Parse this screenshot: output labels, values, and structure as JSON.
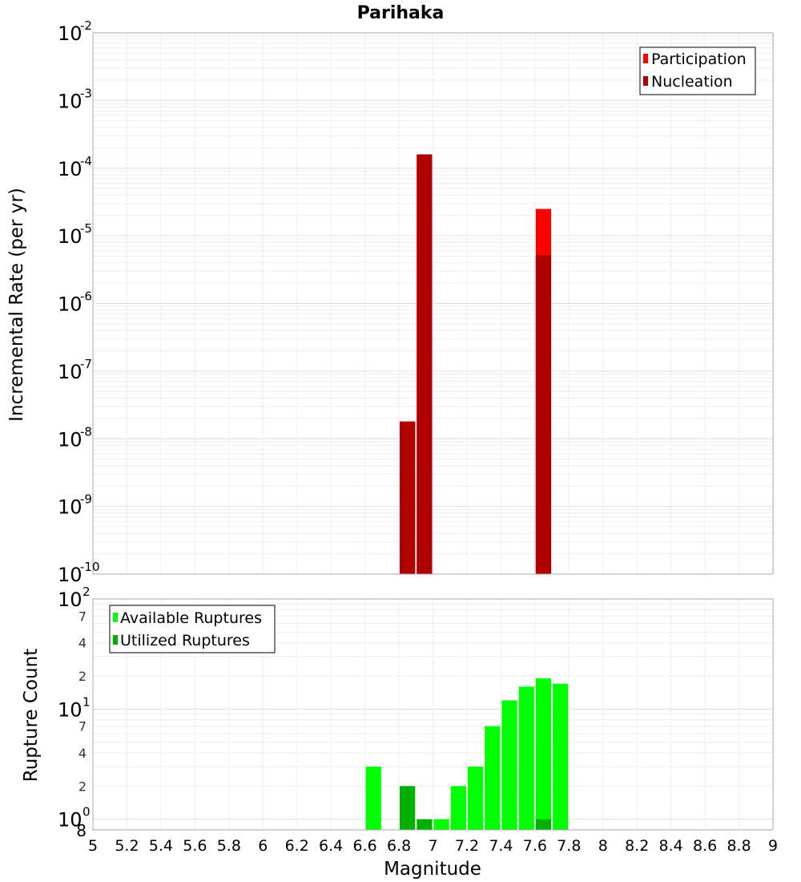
{
  "chart_data": [
    {
      "type": "bar",
      "title": "Parihaka",
      "ylabel": "Incremental Rate (per yr)",
      "y_scale": "log",
      "ylim": [
        1e-10,
        0.01
      ],
      "y_tick_exponents": [
        -10,
        -9,
        -8,
        -7,
        -6,
        -5,
        -4,
        -3,
        -2
      ],
      "y_tick_base": "10",
      "x": [
        6.85,
        6.95,
        7.65
      ],
      "series": [
        {
          "name": "Participation",
          "color": "#ff0000",
          "values": [
            1.8e-08,
            0.00016,
            2.5e-05
          ]
        },
        {
          "name": "Nucleation",
          "color": "#b00000",
          "values": [
            1.8e-08,
            0.00016,
            5.2e-06
          ]
        }
      ],
      "legend_position": "top-right",
      "grid": true
    },
    {
      "type": "bar",
      "ylabel": "Rupture Count",
      "xlabel": "Magnitude",
      "y_scale": "log",
      "ylim": [
        0.8,
        100
      ],
      "y_major_ticks": [
        {
          "base": "10",
          "exp": "0",
          "value": 1
        },
        {
          "base": "10",
          "exp": "1",
          "value": 10
        },
        {
          "base": "10",
          "exp": "2",
          "value": 100
        }
      ],
      "y_minor_ticks": [
        {
          "label": "8",
          "value": 0.8
        },
        {
          "label": "2",
          "value": 2
        },
        {
          "label": "4",
          "value": 4
        },
        {
          "label": "7",
          "value": 7
        },
        {
          "label": "2",
          "value": 20
        },
        {
          "label": "4",
          "value": 40
        },
        {
          "label": "7",
          "value": 70
        }
      ],
      "x": [
        6.65,
        6.85,
        6.95,
        7.05,
        7.15,
        7.25,
        7.35,
        7.45,
        7.55,
        7.65,
        7.75
      ],
      "series": [
        {
          "name": "Available Ruptures",
          "color": "#00ff00",
          "values": [
            3,
            0,
            0,
            1,
            2,
            3,
            7,
            12,
            16,
            19,
            17
          ]
        },
        {
          "name": "Utilized Ruptures",
          "color": "#00b000",
          "values": [
            0,
            2,
            1,
            0,
            0,
            0,
            0,
            0,
            0,
            1,
            0
          ]
        }
      ],
      "xlim": [
        5,
        9
      ],
      "x_ticks": [
        "5",
        "5.2",
        "5.4",
        "5.6",
        "5.8",
        "6",
        "6.2",
        "6.4",
        "6.6",
        "6.8",
        "7",
        "7.2",
        "7.4",
        "7.6",
        "7.8",
        "8",
        "8.2",
        "8.4",
        "8.6",
        "8.8",
        "9"
      ],
      "legend_position": "top-left",
      "grid": true
    }
  ]
}
